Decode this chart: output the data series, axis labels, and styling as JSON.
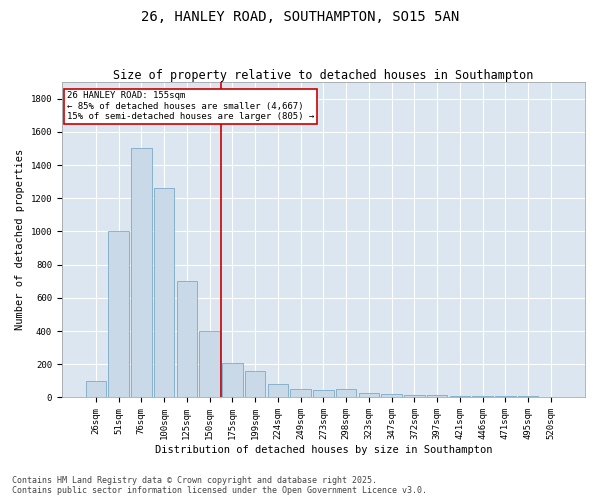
{
  "title": "26, HANLEY ROAD, SOUTHAMPTON, SO15 5AN",
  "subtitle": "Size of property relative to detached houses in Southampton",
  "xlabel": "Distribution of detached houses by size in Southampton",
  "ylabel": "Number of detached properties",
  "categories": [
    "26sqm",
    "51sqm",
    "76sqm",
    "100sqm",
    "125sqm",
    "150sqm",
    "175sqm",
    "199sqm",
    "224sqm",
    "249sqm",
    "273sqm",
    "298sqm",
    "323sqm",
    "347sqm",
    "372sqm",
    "397sqm",
    "421sqm",
    "446sqm",
    "471sqm",
    "495sqm",
    "520sqm"
  ],
  "values": [
    100,
    1000,
    1500,
    1260,
    700,
    400,
    210,
    160,
    80,
    50,
    45,
    50,
    25,
    18,
    12,
    12,
    8,
    7,
    6,
    6,
    5
  ],
  "bar_color": "#c9d9e8",
  "bar_edge_color": "#6a9fc0",
  "background_color": "#dce6f0",
  "grid_color": "#ffffff",
  "vline_x": 5.5,
  "vline_color": "#cc0000",
  "annotation_text": "26 HANLEY ROAD: 155sqm\n← 85% of detached houses are smaller (4,667)\n15% of semi-detached houses are larger (805) →",
  "annotation_box_color": "#cc0000",
  "footer_line1": "Contains HM Land Registry data © Crown copyright and database right 2025.",
  "footer_line2": "Contains public sector information licensed under the Open Government Licence v3.0.",
  "ylim": [
    0,
    1900
  ],
  "yticks": [
    0,
    200,
    400,
    600,
    800,
    1000,
    1200,
    1400,
    1600,
    1800
  ],
  "title_fontsize": 10,
  "subtitle_fontsize": 8.5,
  "axis_label_fontsize": 7.5,
  "tick_fontsize": 6.5,
  "annotation_fontsize": 6.5,
  "footer_fontsize": 6.0
}
